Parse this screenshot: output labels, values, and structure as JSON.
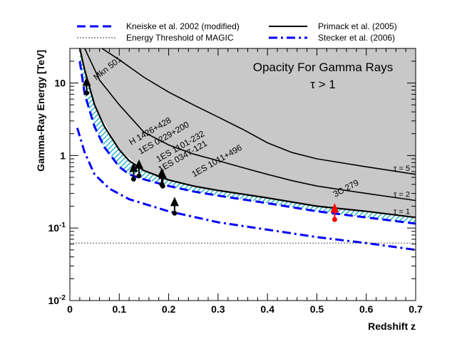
{
  "chart_data": {
    "type": "line",
    "title": "Opacity For Gamma Rays",
    "subtitle": "τ > 1",
    "xlabel": "Redshift z",
    "ylabel": "Gamma-Ray Energy [TeV]",
    "xlim": [
      0,
      0.7
    ],
    "ylim": [
      0.01,
      30
    ],
    "y_scale": "log",
    "x_ticks": [
      "0",
      "0.1",
      "0.2",
      "0.3",
      "0.4",
      "0.5",
      "0.6",
      "0.7"
    ],
    "y_ticks": [
      {
        "value": 10,
        "label": "10"
      },
      {
        "value": 1,
        "label": "1"
      },
      {
        "value": 0.1,
        "label": "10-1"
      },
      {
        "value": 0.01,
        "label": "10-2"
      }
    ],
    "legend": {
      "placement": "top",
      "entries": [
        {
          "label": "Kneiske et al. 2002 (modified)",
          "style": "dashed",
          "color": "#0000ff"
        },
        {
          "label": "Primack et al. (2005)",
          "style": "solid",
          "color": "#000000"
        },
        {
          "label": "Energy Threshold of MAGIC",
          "style": "dotted",
          "color": "#000000"
        },
        {
          "label": "Stecker et al. (2006)",
          "style": "dashdot",
          "color": "#0000ff"
        }
      ]
    },
    "series": [
      {
        "name": "Kneiske et al. 2002 (modified)",
        "style": "dashed",
        "color": "#0000ff",
        "x": [
          0.02,
          0.03,
          0.05,
          0.07,
          0.1,
          0.12,
          0.15,
          0.2,
          0.25,
          0.3,
          0.4,
          0.5,
          0.6,
          0.7
        ],
        "y": [
          20,
          7,
          2.5,
          1.3,
          0.7,
          0.55,
          0.47,
          0.38,
          0.32,
          0.28,
          0.22,
          0.17,
          0.14,
          0.115
        ]
      },
      {
        "name": "Primack et al. (2005)",
        "style": "solid",
        "color": "#000000",
        "x": [
          0.02,
          0.03,
          0.05,
          0.07,
          0.1,
          0.12,
          0.15,
          0.2,
          0.25,
          0.3,
          0.4,
          0.5,
          0.6,
          0.7
        ],
        "y": [
          30,
          15,
          5,
          2.5,
          1.2,
          0.85,
          0.62,
          0.46,
          0.38,
          0.33,
          0.26,
          0.2,
          0.17,
          0.14
        ]
      },
      {
        "name": "Stecker et al. (2006)",
        "style": "dashdot",
        "color": "#0000ff",
        "x": [
          0.015,
          0.03,
          0.05,
          0.08,
          0.12,
          0.2,
          0.3,
          0.4,
          0.5,
          0.6,
          0.7
        ],
        "y": [
          2.4,
          1.1,
          0.55,
          0.35,
          0.25,
          0.17,
          0.12,
          0.095,
          0.075,
          0.062,
          0.05
        ]
      },
      {
        "name": "Energy Threshold of MAGIC",
        "style": "dotted",
        "color": "#555555",
        "x": [
          0,
          0.7
        ],
        "y": [
          0.062,
          0.062
        ]
      }
    ],
    "tau_contours": [
      {
        "label": "τ = 1",
        "x": [
          0.02,
          0.05,
          0.1,
          0.15,
          0.2,
          0.3,
          0.4,
          0.5,
          0.6,
          0.7
        ],
        "y": [
          30,
          5,
          1.2,
          0.62,
          0.46,
          0.33,
          0.26,
          0.2,
          0.17,
          0.14
        ]
      },
      {
        "label": "τ = 2",
        "x": [
          0.03,
          0.06,
          0.1,
          0.15,
          0.2,
          0.25,
          0.3,
          0.35,
          0.4,
          0.45,
          0.5,
          0.6,
          0.7
        ],
        "y": [
          30,
          11,
          5,
          2.1,
          1.4,
          1.05,
          0.85,
          0.68,
          0.55,
          0.45,
          0.38,
          0.3,
          0.24
        ]
      },
      {
        "label": "τ = 5",
        "x": [
          0.065,
          0.1,
          0.15,
          0.2,
          0.25,
          0.3,
          0.35,
          0.4,
          0.45,
          0.5,
          0.6,
          0.7
        ],
        "y": [
          30,
          21,
          12,
          7.5,
          5,
          3.4,
          2.3,
          1.5,
          1.1,
          0.9,
          0.7,
          0.55
        ]
      }
    ],
    "sources": [
      {
        "label": "Mkn 501",
        "z": 0.034,
        "energy": 10,
        "color": "#000000"
      },
      {
        "label": "H 1426+428",
        "z": 0.129,
        "energy": 0.65,
        "color": "#000000"
      },
      {
        "label": "1ES 0229+200",
        "z": 0.14,
        "energy": 0.72,
        "color": "#000000"
      },
      {
        "label": "1ES 1101-232",
        "z": 0.186,
        "energy": 0.55,
        "color": "#000000"
      },
      {
        "label": "1ES 0347-121",
        "z": 0.188,
        "energy": 0.52,
        "color": "#000000"
      },
      {
        "label": "1ES 1011+496",
        "z": 0.212,
        "energy": 0.22,
        "color": "#000000"
      },
      {
        "label": "3C 279",
        "z": 0.536,
        "energy": 0.18,
        "color": "#ff0000"
      }
    ]
  }
}
